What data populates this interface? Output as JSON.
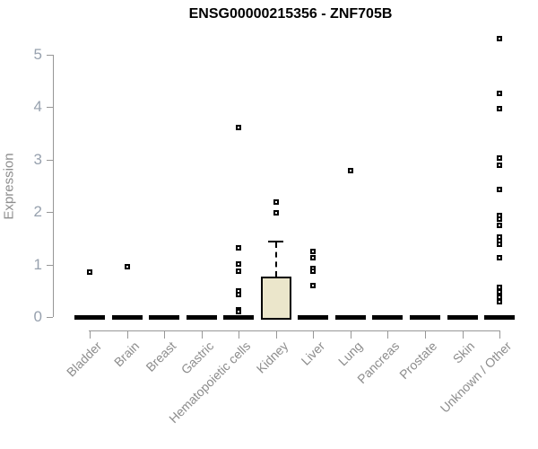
{
  "chart_data": {
    "type": "boxplot",
    "title": "ENSG00000215356 - ZNF705B",
    "ylabel": "Expression",
    "xlabel": "",
    "ylim": [
      0,
      5
    ],
    "yticks": [
      0,
      1,
      2,
      3,
      4,
      5
    ],
    "grid": false,
    "legend": null,
    "categories": [
      "Bladder",
      "Brain",
      "Breast",
      "Gastric",
      "Hematopoietic cells",
      "Kidney",
      "Liver",
      "Lung",
      "Pancreas",
      "Prostate",
      "Skin",
      "Unknown / Other"
    ],
    "boxes": [
      {
        "category": "Bladder",
        "q1": 0,
        "median": 0,
        "q3": 0,
        "whisker_low": 0,
        "whisker_high": 0,
        "outliers": [
          0.85
        ]
      },
      {
        "category": "Brain",
        "q1": 0,
        "median": 0,
        "q3": 0,
        "whisker_low": 0,
        "whisker_high": 0,
        "outliers": [
          0.96
        ]
      },
      {
        "category": "Breast",
        "q1": 0,
        "median": 0,
        "q3": 0,
        "whisker_low": 0,
        "whisker_high": 0,
        "outliers": []
      },
      {
        "category": "Gastric",
        "q1": 0,
        "median": 0,
        "q3": 0,
        "whisker_low": 0,
        "whisker_high": 0,
        "outliers": []
      },
      {
        "category": "Hematopoietic cells",
        "q1": 0,
        "median": 0,
        "q3": 0,
        "whisker_low": 0,
        "whisker_high": 0,
        "outliers": [
          3.61,
          1.32,
          1.01,
          0.87,
          0.5,
          0.43,
          0.14,
          0.11
        ]
      },
      {
        "category": "Kidney",
        "q1": 0,
        "median": 0,
        "q3": 0.77,
        "whisker_low": 0,
        "whisker_high": 1.42,
        "outliers": [
          2.19,
          1.98
        ]
      },
      {
        "category": "Liver",
        "q1": 0,
        "median": 0,
        "q3": 0,
        "whisker_low": 0,
        "whisker_high": 0,
        "outliers": [
          1.25,
          1.13,
          0.92,
          0.88,
          0.6
        ]
      },
      {
        "category": "Lung",
        "q1": 0,
        "median": 0,
        "q3": 0,
        "whisker_low": 0,
        "whisker_high": 0,
        "outliers": [
          2.79
        ]
      },
      {
        "category": "Pancreas",
        "q1": 0,
        "median": 0,
        "q3": 0,
        "whisker_low": 0,
        "whisker_high": 0,
        "outliers": []
      },
      {
        "category": "Prostate",
        "q1": 0,
        "median": 0,
        "q3": 0,
        "whisker_low": 0,
        "whisker_high": 0,
        "outliers": []
      },
      {
        "category": "Skin",
        "q1": 0,
        "median": 0,
        "q3": 0,
        "whisker_low": 0,
        "whisker_high": 0,
        "outliers": []
      },
      {
        "category": "Unknown / Other",
        "q1": 0,
        "median": 0,
        "q3": 0,
        "whisker_low": 0,
        "whisker_high": 0,
        "outliers": [
          5.31,
          4.26,
          3.97,
          3.03,
          2.9,
          2.44,
          1.93,
          1.87,
          1.75,
          1.53,
          1.45,
          1.38,
          1.13,
          0.56,
          0.48,
          0.38,
          0.29
        ]
      }
    ],
    "colors": {
      "box_fill": "#EBE6CB",
      "box_border": "#000000",
      "axis_line": "#979797",
      "axis_text": "#8D8D8D",
      "ytick_text": "#97A1AE",
      "title_text": "#000000",
      "outlier": "#000000"
    }
  }
}
